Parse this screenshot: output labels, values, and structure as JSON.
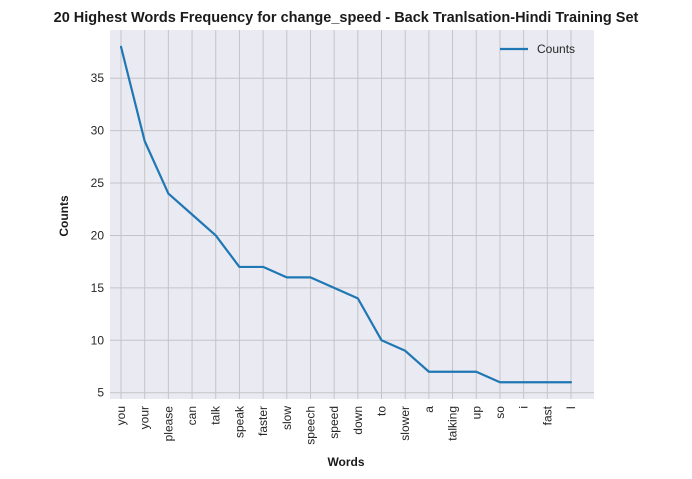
{
  "chart_data": {
    "type": "line",
    "title": "20 Highest Words Frequency for change_speed - Back Tranlsation-Hindi Training Set",
    "xlabel": "Words",
    "ylabel": "Counts",
    "categories": [
      "you",
      "your",
      "please",
      "can",
      "talk",
      "speak",
      "faster",
      "slow",
      "speech",
      "speed",
      "down",
      "to",
      "slower",
      "a",
      "talking",
      "up",
      "so",
      "i",
      "fast",
      "I"
    ],
    "series": [
      {
        "name": "Counts",
        "values": [
          38,
          29,
          24,
          22,
          20,
          17,
          17,
          16,
          16,
          15,
          14,
          10,
          9,
          7,
          7,
          7,
          6,
          6,
          6,
          6
        ]
      }
    ],
    "ylim": [
      4.4,
      39.6
    ],
    "yticks": [
      5,
      10,
      15,
      20,
      25,
      30,
      35
    ],
    "grid": true,
    "legend": "top-right",
    "colors": {
      "line": "#1f77b4",
      "plot_bg": "#eaeaf2",
      "grid": "#c4c4c8"
    }
  }
}
